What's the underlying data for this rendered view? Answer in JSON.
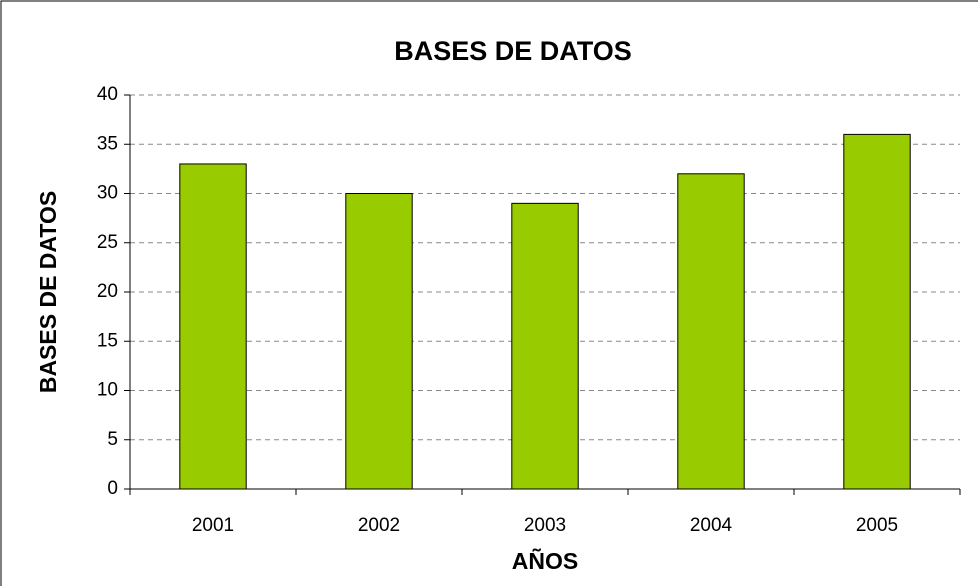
{
  "chart_data": {
    "type": "bar",
    "title": "BASES DE DATOS",
    "x_label": "AÑOS",
    "y_label": "BASES DE DATOS",
    "categories": [
      "2001",
      "2002",
      "2003",
      "2004",
      "2005"
    ],
    "values": [
      33,
      30,
      29,
      32,
      36
    ],
    "color": "#99cc00",
    "ylim": [
      0,
      40
    ],
    "yticks": [
      0,
      5,
      10,
      15,
      20,
      25,
      30,
      35,
      40
    ],
    "grid": true
  }
}
